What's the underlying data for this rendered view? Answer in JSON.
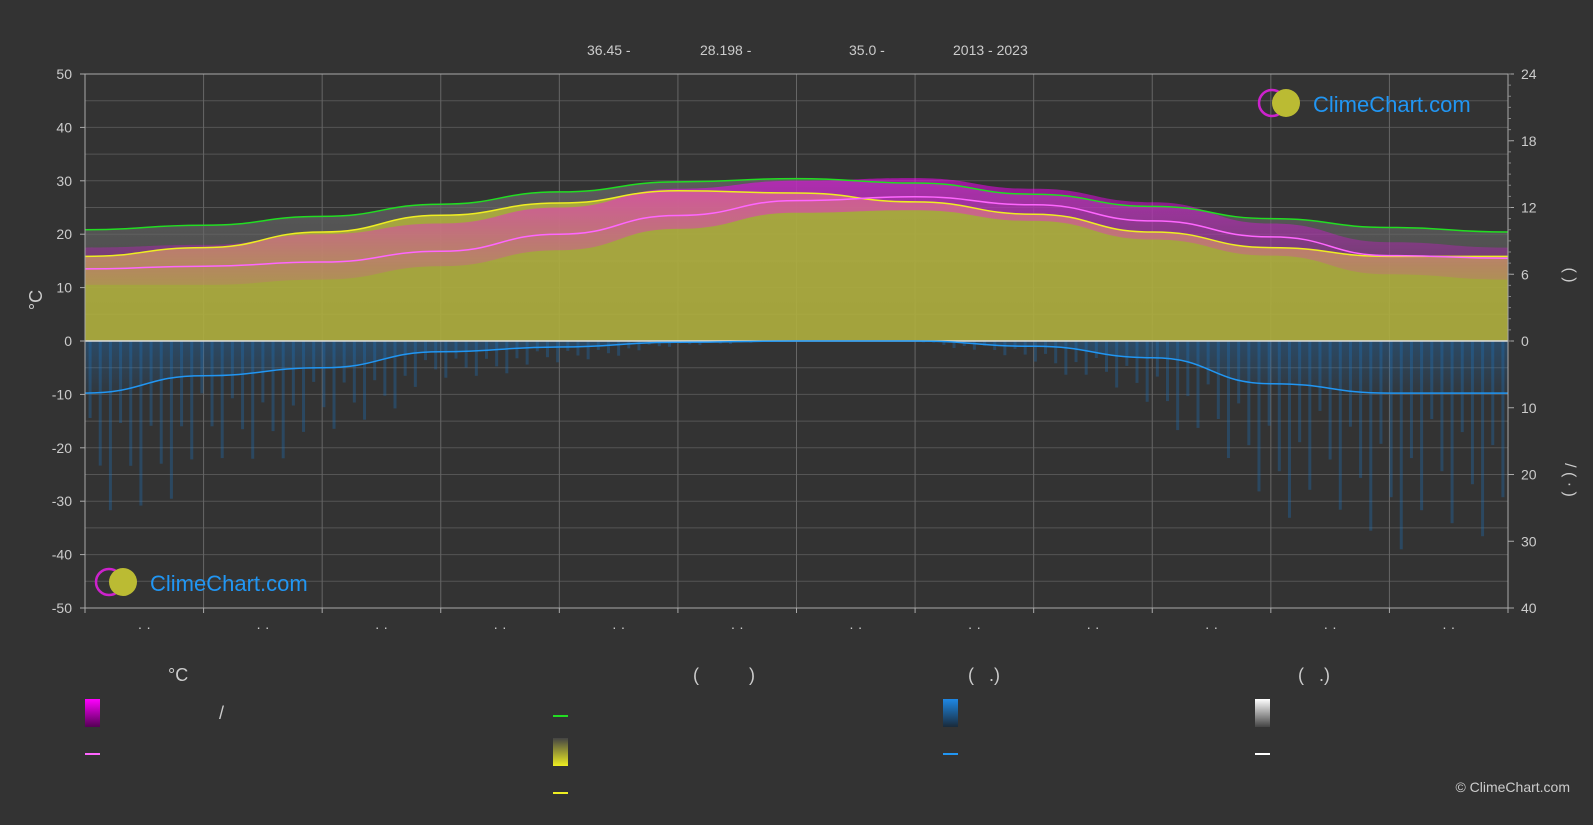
{
  "header": {
    "lat": "36.45 -",
    "lon": "28.198 -",
    "elev": "35.0 -",
    "years": "2013 - 2023"
  },
  "watermark": {
    "text": "ClimeChart.com"
  },
  "copyright": "© ClimeChart.com",
  "legend": {
    "col1_title": "°C",
    "col1_slash": "/",
    "col2_title": "(          )",
    "col3_title": "(   .)",
    "col4_title": "(   .)"
  },
  "colors": {
    "background": "#333333",
    "grid": "#5a5a5a",
    "temp_range": "#e000e0",
    "avg_temp": "#ff66ff",
    "daylight": "#22dd22",
    "sunshine_fill": "#b4b43c",
    "sunshine_line": "#eeee22",
    "precip": "#1e88e5",
    "precip_line": "#2196f3",
    "snow": "#ffffff"
  },
  "chart_data": {
    "type": "area",
    "x_ticks": [
      "· ·",
      "· ·",
      "· ·",
      "· ·",
      "· ·",
      "· ·",
      "· ·",
      "· ·",
      "· ·",
      "· ·",
      "· ·",
      "· ·"
    ],
    "y_left": {
      "label": "°C",
      "range": [
        -50,
        50
      ],
      "ticks": [
        50,
        40,
        30,
        20,
        10,
        0,
        -10,
        -20,
        -30,
        -40,
        -50
      ]
    },
    "y_right_top": {
      "label": "(     )",
      "range": [
        0,
        24
      ],
      "ticks": [
        24,
        18,
        12,
        6,
        0
      ]
    },
    "y_right_bottom": {
      "label": "/      (  ·  )",
      "range": [
        0,
        40
      ],
      "ticks": [
        0,
        10,
        20,
        30,
        40
      ]
    },
    "grid": true,
    "series": [
      {
        "key": "daylight",
        "axis": "hours",
        "values": [
          10.0,
          10.4,
          11.2,
          12.3,
          13.4,
          14.3,
          14.6,
          14.2,
          13.2,
          12.1,
          11.0,
          10.2,
          9.8
        ]
      },
      {
        "key": "sunshine",
        "axis": "hours",
        "values": [
          7.6,
          8.4,
          9.8,
          11.3,
          12.4,
          13.5,
          13.3,
          12.5,
          11.4,
          9.8,
          8.4,
          7.6,
          7.6
        ]
      },
      {
        "key": "avg_temp",
        "axis": "temp",
        "values": [
          13.5,
          14.0,
          14.8,
          16.8,
          20.0,
          23.5,
          26.3,
          27.0,
          25.5,
          22.5,
          19.5,
          16.0,
          15.5
        ]
      },
      {
        "key": "range_top",
        "axis": "temp",
        "values": [
          17.5,
          18.0,
          20.0,
          22.0,
          25.0,
          28.5,
          30.0,
          30.5,
          28.5,
          26.0,
          22.0,
          18.5,
          17.5
        ]
      },
      {
        "key": "range_bottom",
        "axis": "temp",
        "values": [
          10.5,
          10.5,
          11.5,
          14.0,
          17.0,
          21.0,
          24.0,
          24.5,
          22.5,
          19.0,
          16.0,
          12.5,
          11.5
        ]
      },
      {
        "key": "precip",
        "axis": "mm",
        "values": [
          7.8,
          5.2,
          4.0,
          1.6,
          0.9,
          0.2,
          0.0,
          0.0,
          0.8,
          2.5,
          6.4,
          7.8,
          7.8
        ]
      }
    ]
  }
}
